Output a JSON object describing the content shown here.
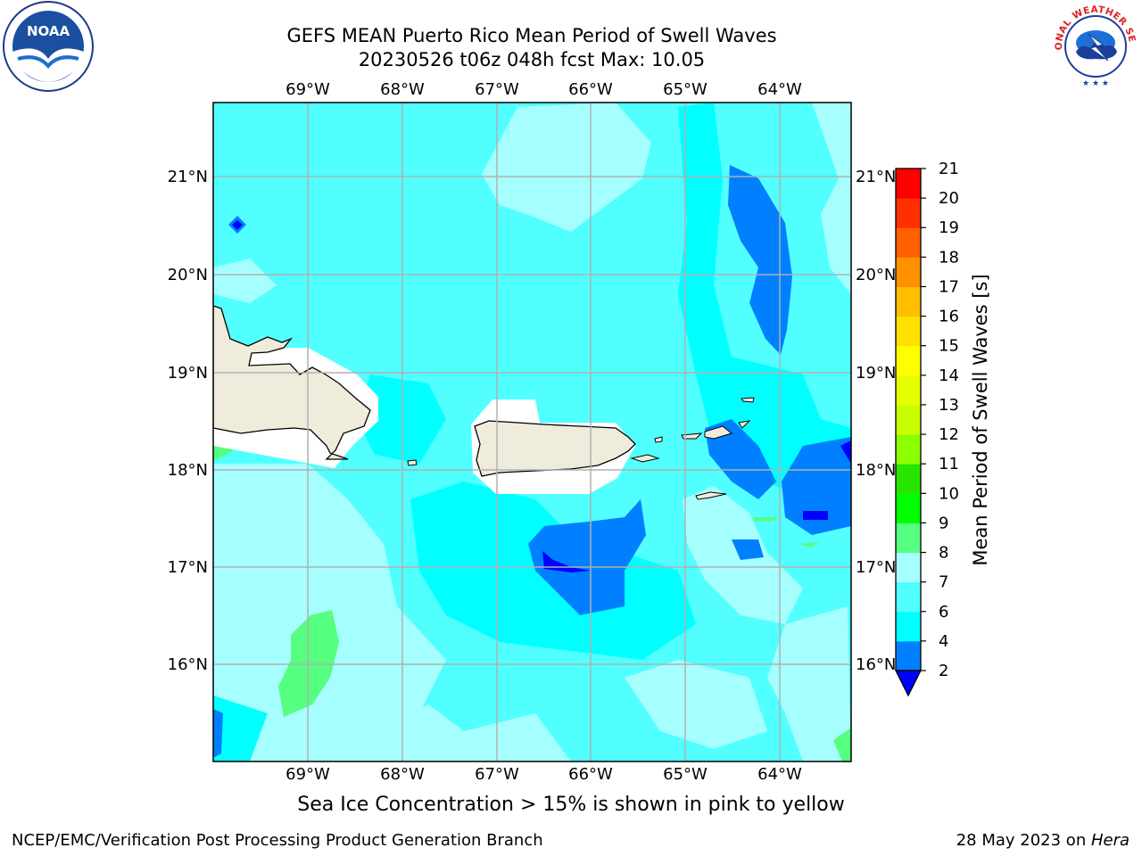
{
  "title": {
    "line1": "GEFS MEAN Puerto Rico Mean Period of Swell Waves",
    "line2": "20230526 t06z 048h fcst   Max: 10.05"
  },
  "map": {
    "lon_labels": [
      "69°W",
      "68°W",
      "67°W",
      "66°W",
      "65°W",
      "64°W"
    ],
    "lat_labels": [
      "21°N",
      "20°N",
      "19°N",
      "18°N",
      "17°N",
      "16°N"
    ],
    "colors": {
      "ocean_light": "#a6ffff",
      "ocean_cyan": "#52ffff",
      "ocean_bright": "#00ffff",
      "blue": "#0080ff",
      "deep_blue": "#0000ff",
      "green": "#55ff7f",
      "land": "#efecdc",
      "grid": "#b0b0b0"
    }
  },
  "colorbar": {
    "label": "Mean Period of Swell Waves [s]",
    "ticks": [
      "2",
      "4",
      "6",
      "7",
      "8",
      "9",
      "10",
      "11",
      "12",
      "13",
      "14",
      "15",
      "16",
      "17",
      "18",
      "19",
      "20",
      "21"
    ],
    "tick_values": [
      2,
      4,
      6,
      7,
      8,
      9,
      10,
      11,
      12,
      13,
      14,
      15,
      16,
      17,
      18,
      19,
      20,
      21
    ],
    "colors": [
      "#0000ff",
      "#0080ff",
      "#00ffff",
      "#52ffff",
      "#a6ffff",
      "#55ff7f",
      "#00ff00",
      "#26e600",
      "#8cff00",
      "#c8ff00",
      "#e6ff00",
      "#ffff00",
      "#ffe000",
      "#ffbf00",
      "#ff9000",
      "#ff6000",
      "#ff3000",
      "#ff0000"
    ]
  },
  "caption": "Sea Ice Concentration > 15% is shown in pink to yellow",
  "footer": {
    "left": "NCEP/EMC/Verification Post Processing Product Generation Branch",
    "right_date": "28 May 2023 on ",
    "right_host": "Hera"
  },
  "logos": {
    "noaa_text": "NOAA",
    "nws_text": "NATIONAL WEATHER SERVICE"
  }
}
